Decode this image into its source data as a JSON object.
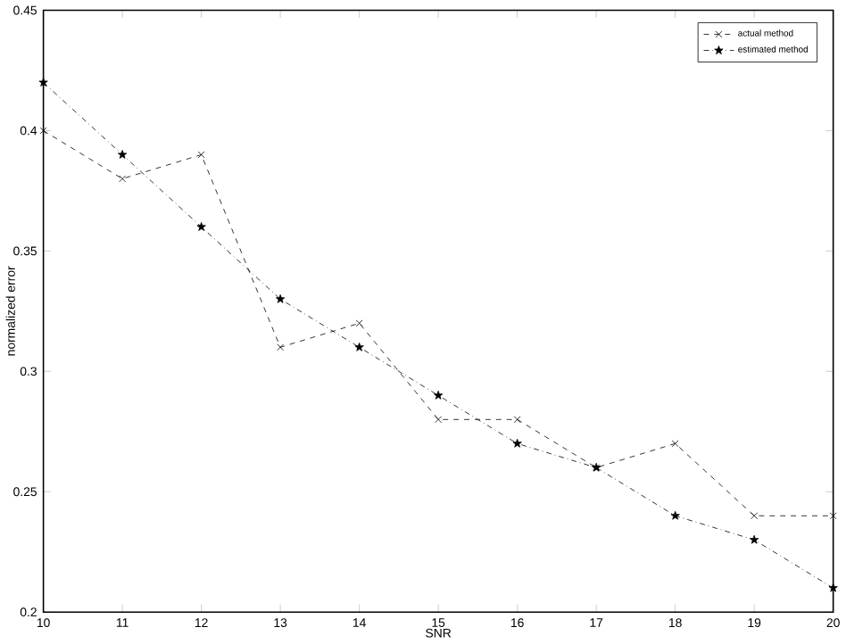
{
  "chart_data": {
    "type": "line",
    "xlabel": "SNR",
    "ylabel": "normalized error",
    "x": [
      10,
      11,
      12,
      13,
      14,
      15,
      16,
      17,
      18,
      19,
      20
    ],
    "series": [
      {
        "name": "actual method",
        "color": "#000000",
        "line_style": "dashed",
        "marker": "cross",
        "values": [
          0.4,
          0.38,
          0.39,
          0.31,
          0.32,
          0.28,
          0.28,
          0.26,
          0.27,
          0.24,
          0.24
        ]
      },
      {
        "name": "estimated method",
        "color": "#000000",
        "line_style": "dotted",
        "marker": "star",
        "values": [
          0.42,
          0.39,
          0.36,
          0.33,
          0.31,
          0.29,
          0.27,
          0.26,
          0.24,
          0.23,
          0.21
        ]
      }
    ],
    "xlim": [
      10,
      20
    ],
    "xticks": [
      10,
      11,
      12,
      13,
      14,
      15,
      16,
      17,
      18,
      19,
      20
    ],
    "ylim": [
      0.2,
      0.45
    ],
    "yticks": [
      0.2,
      0.25,
      0.3,
      0.35,
      0.4,
      0.45
    ],
    "grid": false,
    "legend": "top right"
  }
}
